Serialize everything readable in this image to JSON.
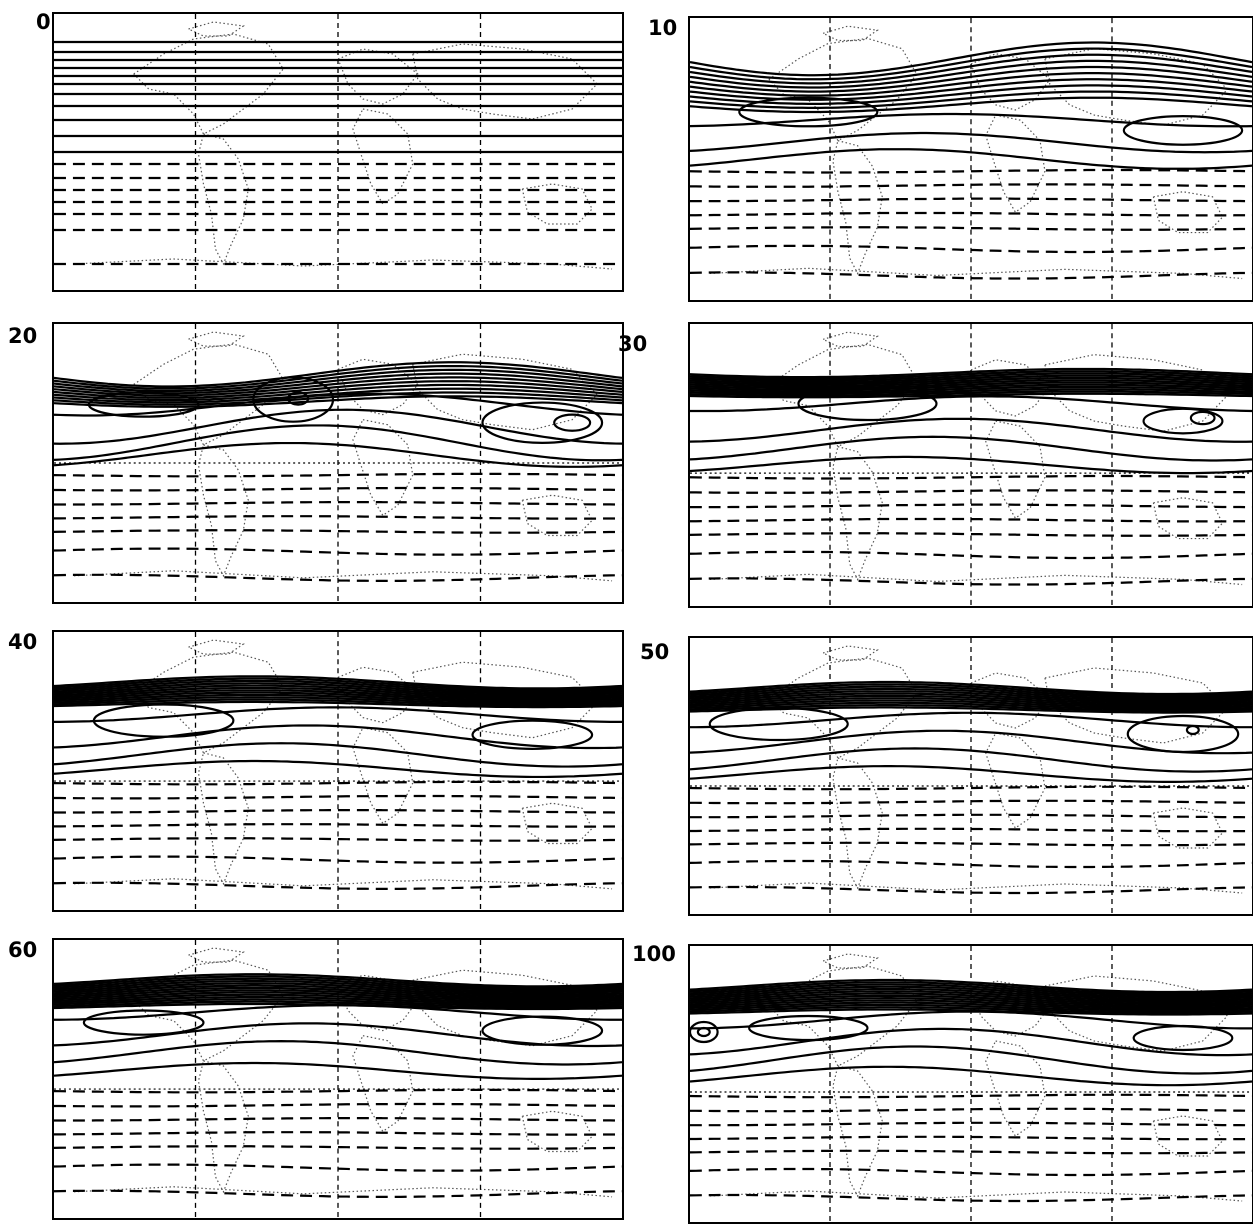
{
  "panels": [
    {
      "label": "0"
    },
    {
      "label": "10"
    },
    {
      "label": "20"
    },
    {
      "label": "30"
    },
    {
      "label": "40"
    },
    {
      "label": "50"
    },
    {
      "label": "60"
    },
    {
      "label": "100"
    }
  ],
  "colors": {
    "contour": "#000000",
    "coast": "#555555",
    "background": "#ffffff"
  }
}
